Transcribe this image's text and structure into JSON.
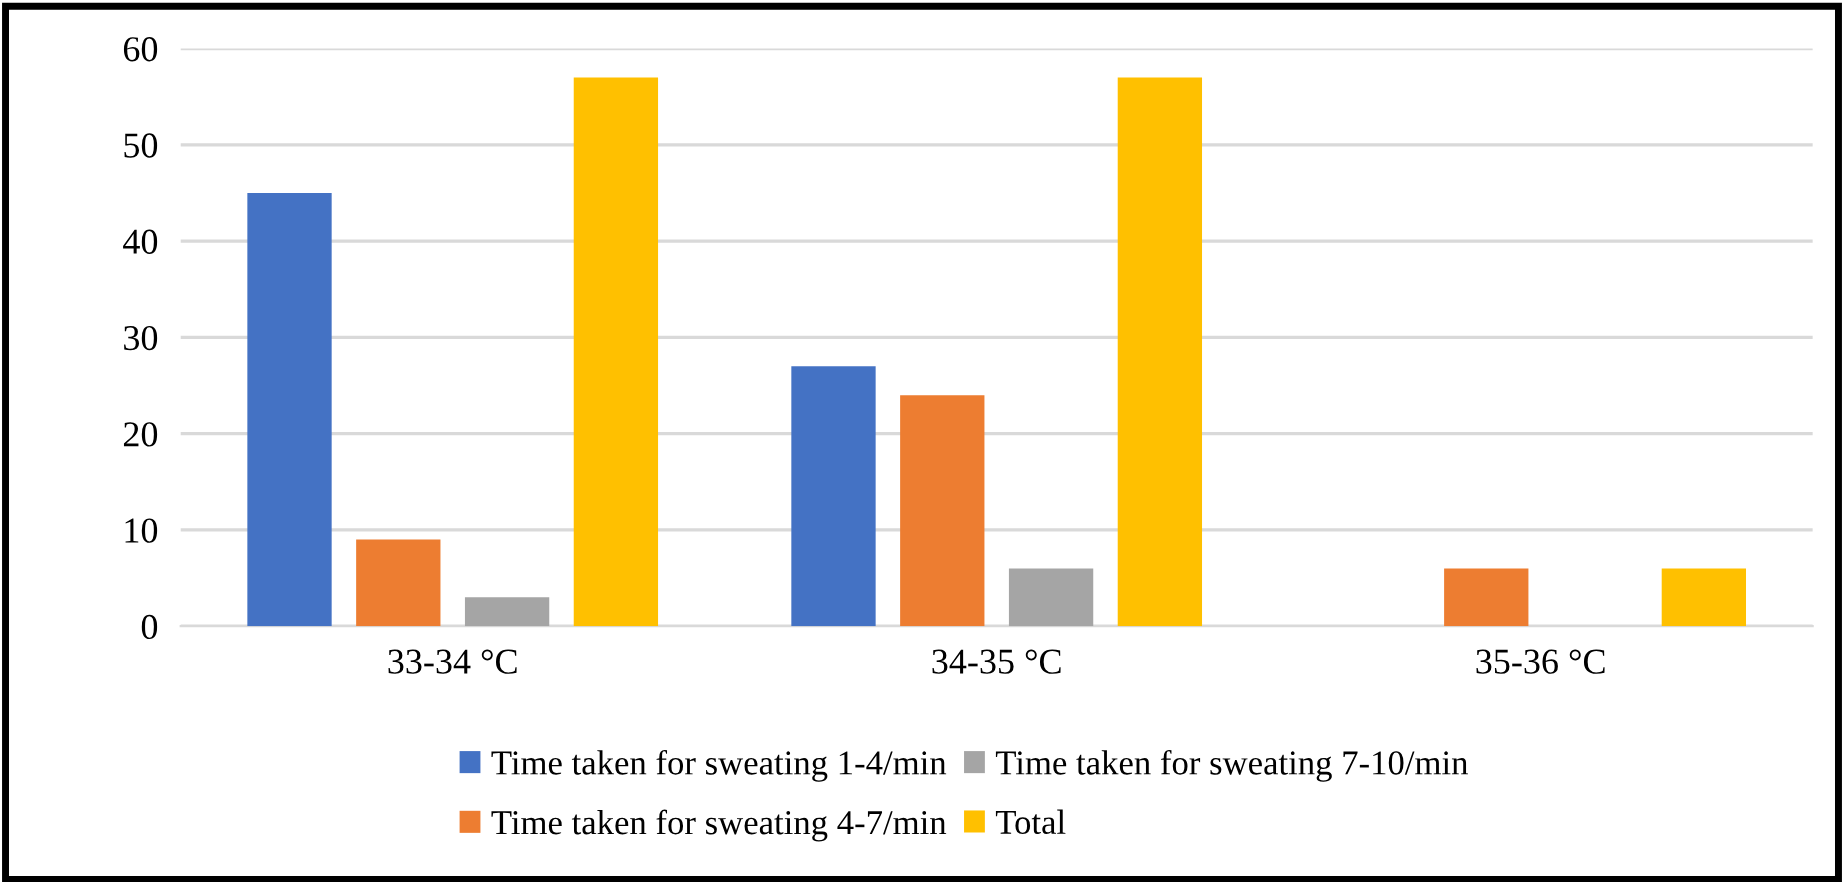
{
  "chart_data": {
    "type": "bar",
    "categories": [
      "33-34 °C",
      "34-35 °C",
      "35-36 °C"
    ],
    "series": [
      {
        "name": "Time taken for sweating 1-4/min",
        "color": "#4472c4",
        "values": [
          45,
          27,
          0
        ]
      },
      {
        "name": "Time taken for sweating 4-7/min",
        "color": "#ed7d31",
        "values": [
          9,
          24,
          6
        ]
      },
      {
        "name": "Time taken for sweating 7-10/min",
        "color": "#a5a5a5",
        "values": [
          3,
          6,
          0
        ]
      },
      {
        "name": "Total",
        "color": "#ffc000",
        "values": [
          57,
          57,
          6
        ]
      }
    ],
    "ylim": [
      0,
      60
    ],
    "yticks": [
      0,
      10,
      20,
      30,
      40,
      50,
      60
    ],
    "grid": "y",
    "legend": "bottom"
  }
}
